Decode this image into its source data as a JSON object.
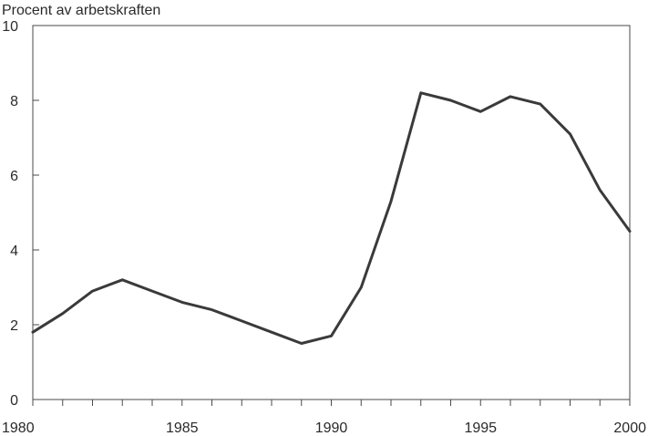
{
  "chart_data": {
    "type": "line",
    "title": "",
    "ylabel": "Procent av arbetskraften",
    "xlabel": "",
    "xlim": [
      1980,
      2000
    ],
    "ylim": [
      0,
      10
    ],
    "x_tick_labels": [
      "1980",
      "1985",
      "1990",
      "1995",
      "2000"
    ],
    "y_tick_labels": [
      "0",
      "2",
      "4",
      "6",
      "8",
      "10"
    ],
    "grid": false,
    "line_color": "#3a3a3a",
    "series": [
      {
        "x": [
          1980,
          1981,
          1982,
          1983,
          1984,
          1985,
          1986,
          1987,
          1988,
          1989,
          1990,
          1991,
          1992,
          1993,
          1994,
          1995,
          1996,
          1997,
          1998,
          1999,
          2000
        ],
        "values": [
          1.8,
          2.3,
          2.9,
          3.2,
          2.9,
          2.6,
          2.4,
          2.1,
          1.8,
          1.5,
          1.7,
          3.0,
          5.3,
          8.2,
          8.0,
          7.7,
          8.1,
          7.9,
          7.1,
          5.6,
          4.5
        ]
      }
    ]
  }
}
